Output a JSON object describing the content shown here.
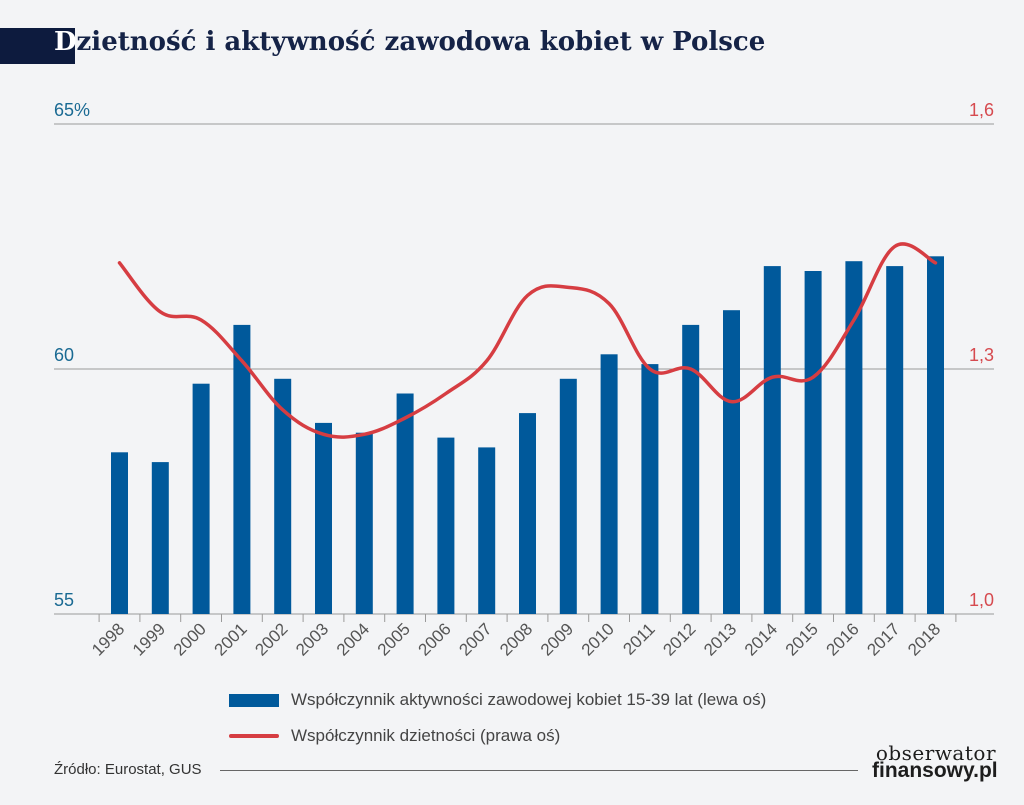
{
  "page": {
    "title_first": "D",
    "title_rest": "zietność i aktywność zawodowa kobiet w Polsce",
    "source": "Źródło: Eurostat, GUS",
    "logo_line1": "obserwator",
    "logo_line2": "finansowy.pl"
  },
  "colors": {
    "bar": "#00599b",
    "line": "#d63d42",
    "left_axis": "#1a6a93",
    "right_axis": "#d64a4f",
    "grid": "#9a9a9a"
  },
  "chart_data": {
    "type": "bar",
    "title": "Dzietność i aktywność zawodowa kobiet w Polsce",
    "categories": [
      "1998",
      "1999",
      "2000",
      "2001",
      "2002",
      "2003",
      "2004",
      "2005",
      "2006",
      "2007",
      "2008",
      "2009",
      "2010",
      "2011",
      "2012",
      "2013",
      "2014",
      "2015",
      "2016",
      "2017",
      "2018"
    ],
    "series": [
      {
        "name": "Współczynnik aktywności zawodowej kobiet 15-39 lat (lewa oś)",
        "type": "bar",
        "axis": "left",
        "values": [
          58.3,
          58.1,
          59.7,
          60.9,
          59.8,
          58.9,
          58.7,
          59.5,
          58.6,
          58.4,
          59.1,
          59.8,
          60.3,
          60.1,
          60.9,
          61.2,
          62.1,
          62.0,
          62.2,
          62.1,
          62.3
        ]
      },
      {
        "name": "Współczynnik dzietności (prawa oś)",
        "type": "line",
        "axis": "right",
        "values": [
          1.43,
          1.37,
          1.36,
          1.31,
          1.25,
          1.22,
          1.22,
          1.24,
          1.27,
          1.31,
          1.39,
          1.4,
          1.38,
          1.3,
          1.3,
          1.26,
          1.29,
          1.29,
          1.36,
          1.45,
          1.43
        ]
      }
    ],
    "left_axis": {
      "ylim": [
        55,
        65
      ],
      "ticks": [
        "55",
        "60",
        "65%"
      ],
      "tick_values": [
        55,
        60,
        65
      ]
    },
    "right_axis": {
      "ylim": [
        1.0,
        1.6
      ],
      "ticks": [
        "1,0",
        "1,3",
        "1,6"
      ],
      "tick_values": [
        1.0,
        1.3,
        1.6
      ]
    },
    "grid": true,
    "legend": "bottom"
  }
}
